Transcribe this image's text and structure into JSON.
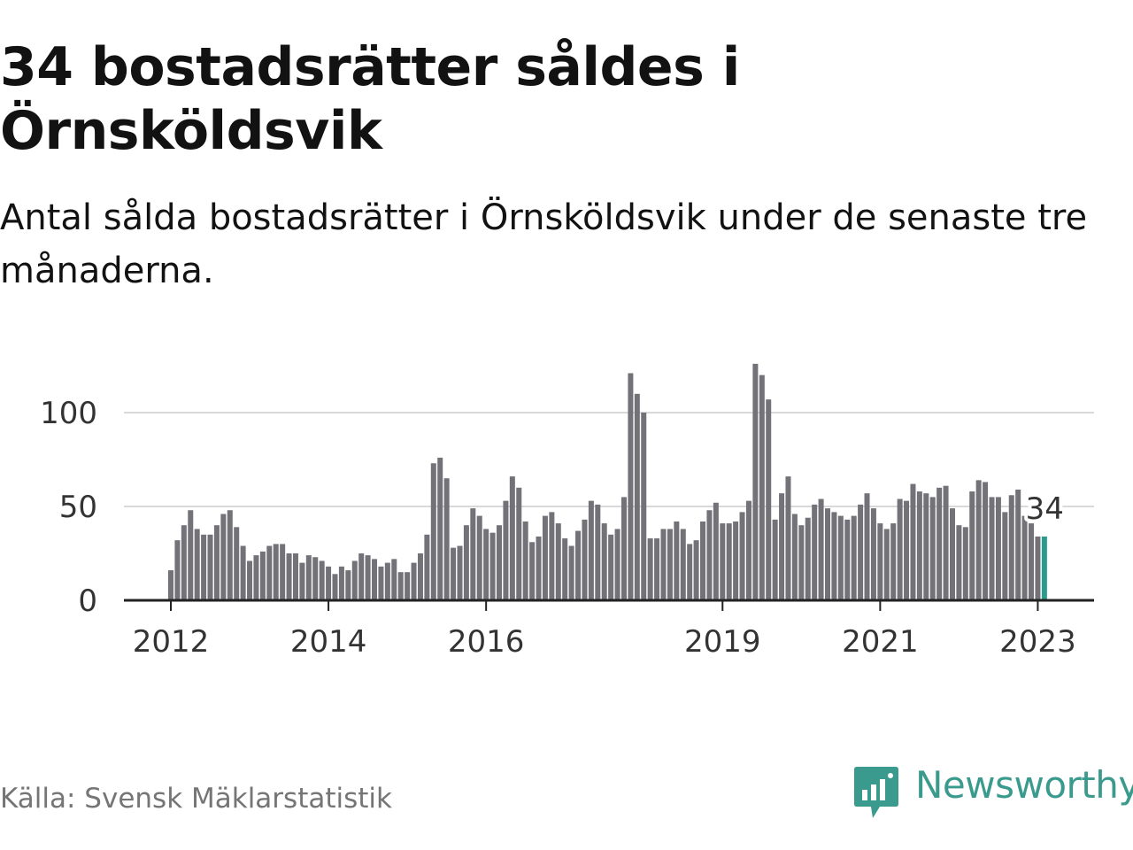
{
  "title": "34 bostadsrätter såldes i Örnsköldsvik",
  "subtitle": "Antal sålda bostadsrätter i Örnsköldsvik under de senaste tre månaderna.",
  "source": "Källa: Svensk Mäklarstatistik",
  "brand": "Newsworthy",
  "colors": {
    "bar": "#737278",
    "highlight": "#2a9c8e",
    "grid": "#d9d9d9",
    "axis": "#222222",
    "brand": "#3a9a8d"
  },
  "chart_data": {
    "type": "bar",
    "title": "",
    "xlabel": "",
    "ylabel": "",
    "ylim": [
      0,
      125
    ],
    "yticks": [
      0,
      50,
      100
    ],
    "xtick_labels": [
      "2012",
      "2014",
      "2016",
      "2019",
      "2021",
      "2023"
    ],
    "xtick_months": [
      0,
      24,
      48,
      84,
      108,
      132
    ],
    "first_month": "2012-01",
    "values": [
      16,
      32,
      40,
      48,
      38,
      35,
      35,
      40,
      46,
      48,
      39,
      29,
      21,
      24,
      26,
      29,
      30,
      30,
      25,
      25,
      20,
      24,
      23,
      21,
      18,
      14,
      18,
      16,
      21,
      25,
      24,
      22,
      18,
      20,
      22,
      15,
      15,
      20,
      25,
      35,
      73,
      76,
      65,
      28,
      29,
      40,
      49,
      45,
      38,
      36,
      40,
      53,
      66,
      60,
      42,
      31,
      34,
      45,
      47,
      41,
      33,
      29,
      37,
      43,
      53,
      51,
      41,
      35,
      38,
      55,
      121,
      110,
      100,
      33,
      33,
      38,
      38,
      42,
      38,
      30,
      32,
      42,
      48,
      52,
      41,
      41,
      42,
      47,
      53,
      126,
      120,
      107,
      43,
      57,
      66,
      46,
      40,
      44,
      51,
      54,
      49,
      47,
      45,
      43,
      45,
      51,
      57,
      49,
      41,
      38,
      41,
      54,
      53,
      62,
      58,
      57,
      55,
      60,
      61,
      49,
      40,
      39,
      58,
      64,
      63,
      55,
      55,
      47,
      56,
      59,
      45,
      41,
      34,
      34
    ],
    "last_label": "34"
  }
}
